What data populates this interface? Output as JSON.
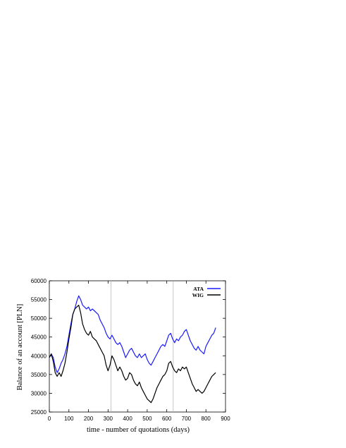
{
  "chart_data": {
    "type": "line",
    "title": "",
    "xlabel": "time - number of quotations (days)",
    "ylabel": "Balance of an account   [PLN]",
    "xlim": [
      0,
      900
    ],
    "ylim": [
      25000,
      60000
    ],
    "xticks": [
      0,
      100,
      200,
      300,
      400,
      500,
      600,
      700,
      800,
      900
    ],
    "yticks": [
      25000,
      30000,
      35000,
      40000,
      45000,
      50000,
      55000,
      60000
    ],
    "grid": false,
    "legend_position": "top-right",
    "vertical_markers": [
      315,
      633
    ],
    "series": [
      {
        "name": "ATA",
        "color": "#1a1aff",
        "x": [
          0,
          10,
          20,
          30,
          40,
          50,
          60,
          70,
          80,
          90,
          100,
          110,
          120,
          130,
          140,
          150,
          160,
          170,
          180,
          190,
          200,
          210,
          220,
          230,
          240,
          250,
          260,
          270,
          280,
          290,
          300,
          310,
          320,
          330,
          340,
          350,
          360,
          370,
          380,
          390,
          400,
          410,
          420,
          430,
          440,
          450,
          460,
          470,
          480,
          490,
          500,
          510,
          520,
          530,
          540,
          550,
          560,
          570,
          580,
          590,
          600,
          610,
          620,
          630,
          640,
          650,
          660,
          670,
          680,
          690,
          700,
          710,
          720,
          730,
          740,
          750,
          760,
          770,
          780,
          790,
          800,
          810,
          820,
          830,
          840,
          850
        ],
        "values": [
          39500,
          40500,
          39500,
          37000,
          35500,
          36500,
          38000,
          39000,
          40500,
          42500,
          45500,
          48500,
          51000,
          52500,
          54500,
          56000,
          55000,
          53500,
          53000,
          52500,
          53000,
          52000,
          52500,
          52000,
          51500,
          51000,
          49500,
          48500,
          47500,
          46000,
          45000,
          44500,
          45500,
          44500,
          43500,
          43000,
          43500,
          42500,
          41000,
          39500,
          40500,
          41500,
          42000,
          41000,
          40000,
          39500,
          40500,
          39500,
          40000,
          40500,
          39000,
          38000,
          37500,
          38500,
          39500,
          40500,
          41500,
          42500,
          43000,
          42500,
          44000,
          45500,
          46000,
          44500,
          43500,
          44500,
          44000,
          45000,
          45500,
          46500,
          47000,
          45500,
          44000,
          43000,
          42000,
          41500,
          42500,
          41500,
          41000,
          40500,
          42500,
          43500,
          44500,
          45500,
          46000,
          47500
        ]
      },
      {
        "name": "WIG",
        "color": "#000000",
        "x": [
          0,
          10,
          20,
          30,
          40,
          50,
          60,
          70,
          80,
          90,
          100,
          110,
          120,
          130,
          140,
          150,
          160,
          170,
          180,
          190,
          200,
          210,
          220,
          230,
          240,
          250,
          260,
          270,
          280,
          290,
          300,
          310,
          320,
          330,
          340,
          350,
          360,
          370,
          380,
          390,
          400,
          410,
          420,
          430,
          440,
          450,
          460,
          470,
          480,
          490,
          500,
          510,
          520,
          530,
          540,
          550,
          560,
          570,
          580,
          590,
          600,
          610,
          620,
          630,
          640,
          650,
          660,
          670,
          680,
          690,
          700,
          710,
          720,
          730,
          740,
          750,
          760,
          770,
          780,
          790,
          800,
          810,
          820,
          830,
          840,
          850
        ],
        "values": [
          39500,
          40500,
          38500,
          35500,
          34500,
          35500,
          34500,
          36000,
          38000,
          41000,
          44500,
          47500,
          51000,
          52500,
          53000,
          53500,
          51500,
          48500,
          47000,
          46000,
          45500,
          46500,
          45000,
          44500,
          44000,
          43000,
          42000,
          41000,
          40000,
          37500,
          36000,
          37500,
          40000,
          39000,
          37500,
          36000,
          37000,
          36000,
          34500,
          33500,
          34000,
          35500,
          35000,
          33500,
          32500,
          32000,
          33000,
          31500,
          30500,
          29500,
          28500,
          28000,
          27500,
          28500,
          30000,
          31500,
          32500,
          33500,
          34500,
          35000,
          36000,
          38000,
          38500,
          37000,
          36000,
          35500,
          36500,
          36000,
          37000,
          36500,
          37000,
          35500,
          34000,
          32500,
          31500,
          30500,
          31000,
          30500,
          30000,
          30500,
          31500,
          32500,
          33500,
          34500,
          35000,
          35500
        ]
      }
    ]
  }
}
